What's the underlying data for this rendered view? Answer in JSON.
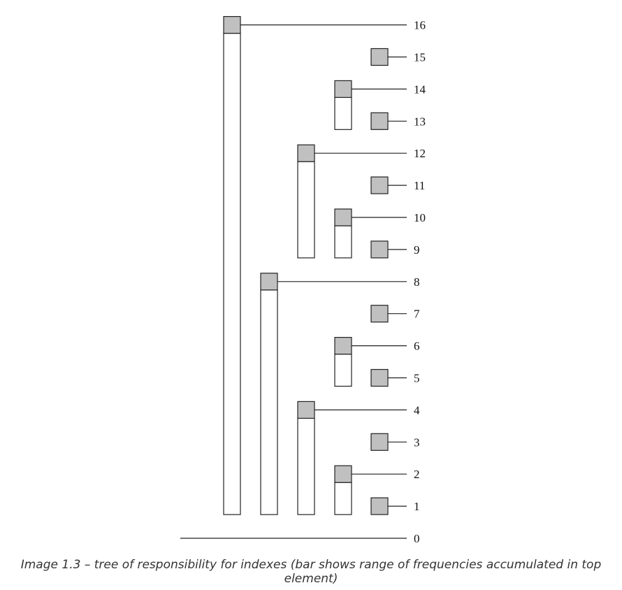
{
  "caption": "Image 1.3 – tree of responsibility for indexes (bar shows range of frequencies accumulated in top element)",
  "colors": {
    "head": "#c0c0c0",
    "body": "#ffffff",
    "line": "#222222"
  },
  "baseline_label": "0",
  "nodes": [
    {
      "index": 1,
      "label": "1",
      "range_low": 1
    },
    {
      "index": 2,
      "label": "2",
      "range_low": 1
    },
    {
      "index": 3,
      "label": "3",
      "range_low": 3
    },
    {
      "index": 4,
      "label": "4",
      "range_low": 1
    },
    {
      "index": 5,
      "label": "5",
      "range_low": 5
    },
    {
      "index": 6,
      "label": "6",
      "range_low": 5
    },
    {
      "index": 7,
      "label": "7",
      "range_low": 7
    },
    {
      "index": 8,
      "label": "8",
      "range_low": 1
    },
    {
      "index": 9,
      "label": "9",
      "range_low": 9
    },
    {
      "index": 10,
      "label": "10",
      "range_low": 9
    },
    {
      "index": 11,
      "label": "11",
      "range_low": 11
    },
    {
      "index": 12,
      "label": "12",
      "range_low": 9
    },
    {
      "index": 13,
      "label": "13",
      "range_low": 13
    },
    {
      "index": 14,
      "label": "14",
      "range_low": 13
    },
    {
      "index": 15,
      "label": "15",
      "range_low": 15
    },
    {
      "index": 16,
      "label": "16",
      "range_low": 1
    }
  ]
}
